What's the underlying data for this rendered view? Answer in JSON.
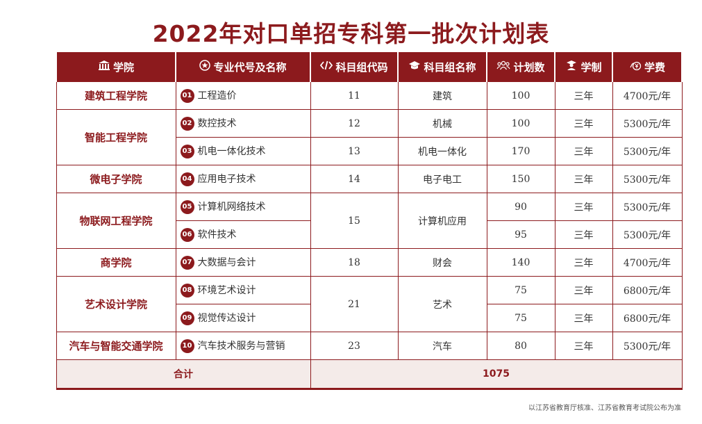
{
  "title": "2022年对口单招专科第一批次计划表",
  "headers": {
    "college": "学院",
    "major": "专业代号及名称",
    "group_code": "科目组代码",
    "group_name": "科目组名称",
    "plan": "计划数",
    "duration": "学制",
    "fee": "学费"
  },
  "icons": {
    "college": "institution-icon",
    "major": "star-circle-icon",
    "group_code": "code-brackets-icon",
    "group_name": "graduation-cap-icon",
    "plan": "people-icon",
    "duration": "teacher-icon",
    "fee": "yen-coin-icon"
  },
  "colleges": [
    "建筑工程学院",
    "智能工程学院",
    "微电子学院",
    "物联网工程学院",
    "商学院",
    "艺术设计学院",
    "汽车与智能交通学院"
  ],
  "groups": [
    {
      "code": "11",
      "name": "建筑"
    },
    {
      "code": "12",
      "name": "机械"
    },
    {
      "code": "13",
      "name": "机电一体化"
    },
    {
      "code": "14",
      "name": "电子电工"
    },
    {
      "code": "15",
      "name": "计算机应用"
    },
    {
      "code": "18",
      "name": "财会"
    },
    {
      "code": "21",
      "name": "艺术"
    },
    {
      "code": "23",
      "name": "汽车"
    }
  ],
  "rows": [
    {
      "num": "01",
      "major": "工程造价",
      "plan": "100",
      "duration": "三年",
      "fee": "4700元/年"
    },
    {
      "num": "02",
      "major": "数控技术",
      "plan": "100",
      "duration": "三年",
      "fee": "5300元/年"
    },
    {
      "num": "03",
      "major": "机电一体化技术",
      "plan": "170",
      "duration": "三年",
      "fee": "5300元/年"
    },
    {
      "num": "04",
      "major": "应用电子技术",
      "plan": "150",
      "duration": "三年",
      "fee": "5300元/年"
    },
    {
      "num": "05",
      "major": "计算机网络技术",
      "plan": "90",
      "duration": "三年",
      "fee": "5300元/年"
    },
    {
      "num": "06",
      "major": "软件技术",
      "plan": "95",
      "duration": "三年",
      "fee": "5300元/年"
    },
    {
      "num": "07",
      "major": "大数据与会计",
      "plan": "140",
      "duration": "三年",
      "fee": "4700元/年"
    },
    {
      "num": "08",
      "major": "环境艺术设计",
      "plan": "75",
      "duration": "三年",
      "fee": "6800元/年"
    },
    {
      "num": "09",
      "major": "视觉传达设计",
      "plan": "75",
      "duration": "三年",
      "fee": "6800元/年"
    },
    {
      "num": "10",
      "major": "汽车技术服务与营销",
      "plan": "80",
      "duration": "三年",
      "fee": "5300元/年"
    }
  ],
  "total": {
    "label": "合计",
    "value": "1075"
  },
  "footnote": "以江苏省教育厅核准、江苏省教育考试院公布为准"
}
